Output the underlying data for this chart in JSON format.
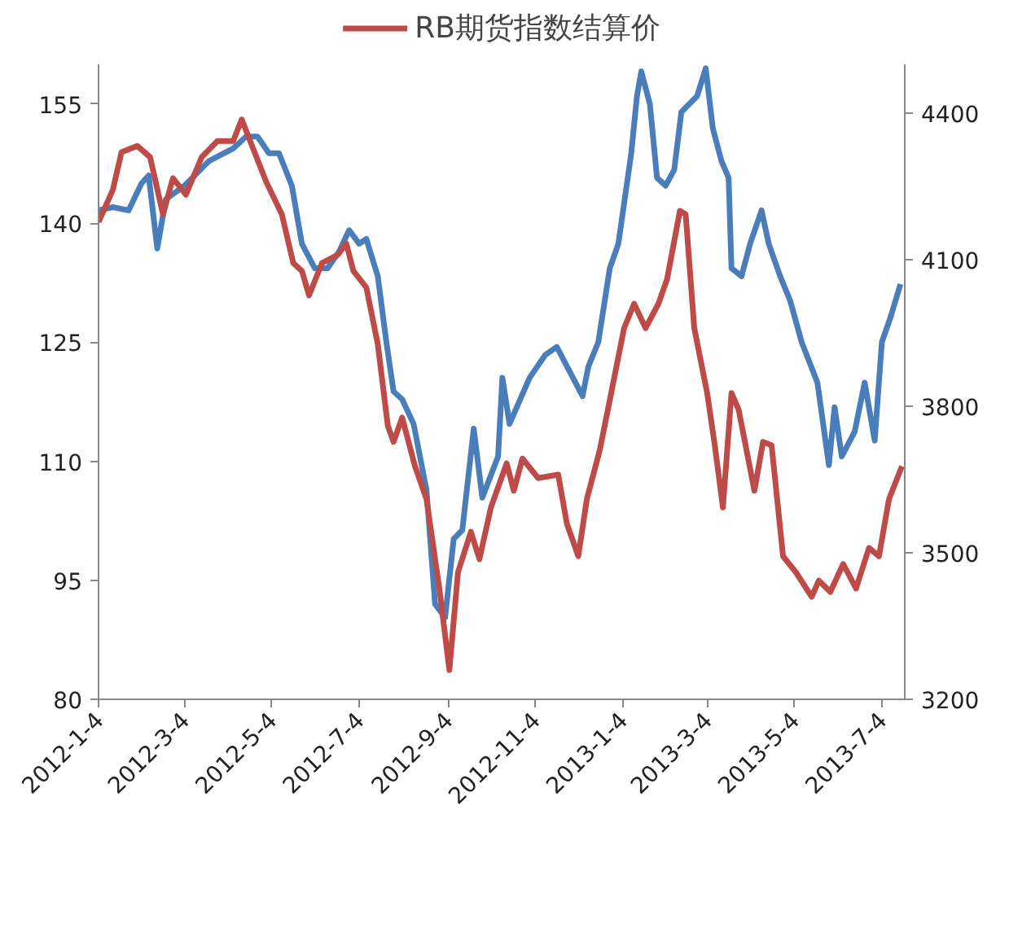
{
  "chart_data": {
    "type": "line",
    "legend": "top",
    "grid": false,
    "marker": "none",
    "line_style": "solid",
    "xlim": [
      "2012-01-04",
      "2013-07-20"
    ],
    "xticks": [
      {
        "value": "2012-01-04",
        "label": "2012-1-4"
      },
      {
        "value": "2012-03-04",
        "label": "2012-3-4"
      },
      {
        "value": "2012-05-04",
        "label": "2012-5-4"
      },
      {
        "value": "2012-07-04",
        "label": "2012-7-4"
      },
      {
        "value": "2012-09-04",
        "label": "2012-9-4"
      },
      {
        "value": "2012-11-04",
        "label": "2012-11-4"
      },
      {
        "value": "2013-01-04",
        "label": "2013-1-4"
      },
      {
        "value": "2013-03-04",
        "label": "2013-3-4"
      },
      {
        "value": "2013-05-04",
        "label": "2013-5-4"
      },
      {
        "value": "2013-07-04",
        "label": "2013-7-4"
      }
    ],
    "ylim": [
      80,
      160
    ],
    "yticks": [
      80,
      95,
      110,
      125,
      140,
      155
    ],
    "y2lim": [
      3200,
      4500
    ],
    "y2ticks": [
      3200,
      3500,
      3800,
      4100,
      4400
    ],
    "series": [
      {
        "color": "#4a7ebb",
        "x": [
          "2012-01-04",
          "2012-01-14",
          "2012-01-25",
          "2012-02-03",
          "2012-02-08",
          "2012-02-14",
          "2012-02-20",
          "2012-03-04",
          "2012-03-21",
          "2012-04-07",
          "2012-04-16",
          "2012-04-24",
          "2012-05-02",
          "2012-05-09",
          "2012-05-18",
          "2012-05-25",
          "2012-06-03",
          "2012-06-12",
          "2012-06-20",
          "2012-06-27",
          "2012-07-04",
          "2012-07-09",
          "2012-07-17",
          "2012-07-23",
          "2012-07-28",
          "2012-08-03",
          "2012-08-11",
          "2012-08-20",
          "2012-08-26",
          "2012-09-02",
          "2012-09-08",
          "2012-09-14",
          "2012-09-22",
          "2012-09-28",
          "2012-10-09",
          "2012-10-12",
          "2012-10-17",
          "2012-10-31",
          "2012-11-11",
          "2012-11-19",
          "2012-11-28",
          "2012-12-07",
          "2012-12-11",
          "2012-12-18",
          "2012-12-26",
          "2013-01-01",
          "2013-01-10",
          "2013-01-14",
          "2013-01-17",
          "2013-01-23",
          "2013-01-28",
          "2013-02-03",
          "2013-02-09",
          "2013-02-14",
          "2013-02-25",
          "2013-03-03",
          "2013-03-08",
          "2013-03-14",
          "2013-03-19",
          "2013-03-21",
          "2013-03-28",
          "2013-04-03",
          "2013-04-11",
          "2013-04-16",
          "2013-04-24",
          "2013-05-01",
          "2013-05-09",
          "2013-05-20",
          "2013-05-28",
          "2013-06-01",
          "2013-06-06",
          "2013-06-15",
          "2013-06-22",
          "2013-06-29",
          "2013-07-04",
          "2013-07-10",
          "2013-07-17"
        ],
        "values": [
          141.6,
          142,
          141.6,
          145,
          146,
          136.8,
          143,
          144.7,
          147.8,
          149.4,
          150.9,
          150.9,
          148.8,
          148.8,
          144.7,
          137.4,
          134.3,
          134.3,
          136.4,
          139.1,
          137.4,
          138,
          133.3,
          125,
          118.8,
          117.8,
          114.7,
          106.4,
          92,
          90.3,
          100.2,
          101.3,
          114.1,
          105.4,
          110.6,
          120.5,
          114.7,
          120.5,
          123.4,
          124.4,
          121.3,
          118.2,
          121.9,
          125,
          134.3,
          137.4,
          148.8,
          156,
          159.1,
          155,
          145.7,
          144.7,
          146.7,
          154,
          156,
          159.5,
          151.9,
          147.8,
          145.7,
          134.3,
          133.3,
          137.4,
          141.6,
          137.4,
          133.3,
          130.2,
          125,
          119.9,
          109.5,
          116.8,
          110.6,
          113.7,
          119.9,
          112.6,
          125,
          128.1,
          132.3
        ]
      },
      {
        "name": "RB期货指数结算价",
        "color": "#be4b48",
        "axis": "y2",
        "x": [
          "2012-01-04",
          "2012-01-14",
          "2012-01-20",
          "2012-01-31",
          "2012-02-09",
          "2012-02-18",
          "2012-02-25",
          "2012-03-05",
          "2012-03-16",
          "2012-03-27",
          "2012-04-07",
          "2012-04-13",
          "2012-04-21",
          "2012-04-30",
          "2012-05-11",
          "2012-05-19",
          "2012-05-25",
          "2012-05-30",
          "2012-06-08",
          "2012-06-19",
          "2012-06-25",
          "2012-06-30",
          "2012-07-09",
          "2012-07-17",
          "2012-07-24",
          "2012-07-28",
          "2012-08-03",
          "2012-08-12",
          "2012-08-20",
          "2012-08-29",
          "2012-09-05",
          "2012-09-11",
          "2012-09-20",
          "2012-09-26",
          "2012-10-04",
          "2012-10-15",
          "2012-10-20",
          "2012-10-26",
          "2012-11-06",
          "2012-11-20",
          "2012-11-26",
          "2012-12-04",
          "2012-12-10",
          "2012-12-19",
          "2012-12-27",
          "2013-01-05",
          "2013-01-12",
          "2013-01-20",
          "2013-01-29",
          "2013-02-04",
          "2013-02-13",
          "2013-02-17",
          "2013-02-23",
          "2013-03-04",
          "2013-03-09",
          "2013-03-15",
          "2013-03-21",
          "2013-03-26",
          "2013-04-06",
          "2013-04-12",
          "2013-04-18",
          "2013-04-26",
          "2013-05-05",
          "2013-05-16",
          "2013-05-21",
          "2013-05-29",
          "2013-06-07",
          "2013-06-16",
          "2013-06-25",
          "2013-07-02",
          "2013-07-09",
          "2013-07-18"
        ],
        "values": [
          4177,
          4243,
          4320,
          4333,
          4310,
          4193,
          4267,
          4233,
          4310,
          4343,
          4343,
          4387,
          4327,
          4260,
          4193,
          4093,
          4077,
          4027,
          4093,
          4110,
          4133,
          4077,
          4043,
          3927,
          3760,
          3727,
          3777,
          3677,
          3610,
          3427,
          3260,
          3460,
          3543,
          3487,
          3593,
          3683,
          3627,
          3693,
          3653,
          3660,
          3560,
          3493,
          3610,
          3710,
          3827,
          3960,
          4010,
          3960,
          4010,
          4060,
          4200,
          4193,
          3960,
          3827,
          3727,
          3593,
          3827,
          3793,
          3627,
          3727,
          3720,
          3493,
          3460,
          3410,
          3443,
          3420,
          3477,
          3427,
          3510,
          3493,
          3610,
          3677
        ]
      }
    ]
  }
}
